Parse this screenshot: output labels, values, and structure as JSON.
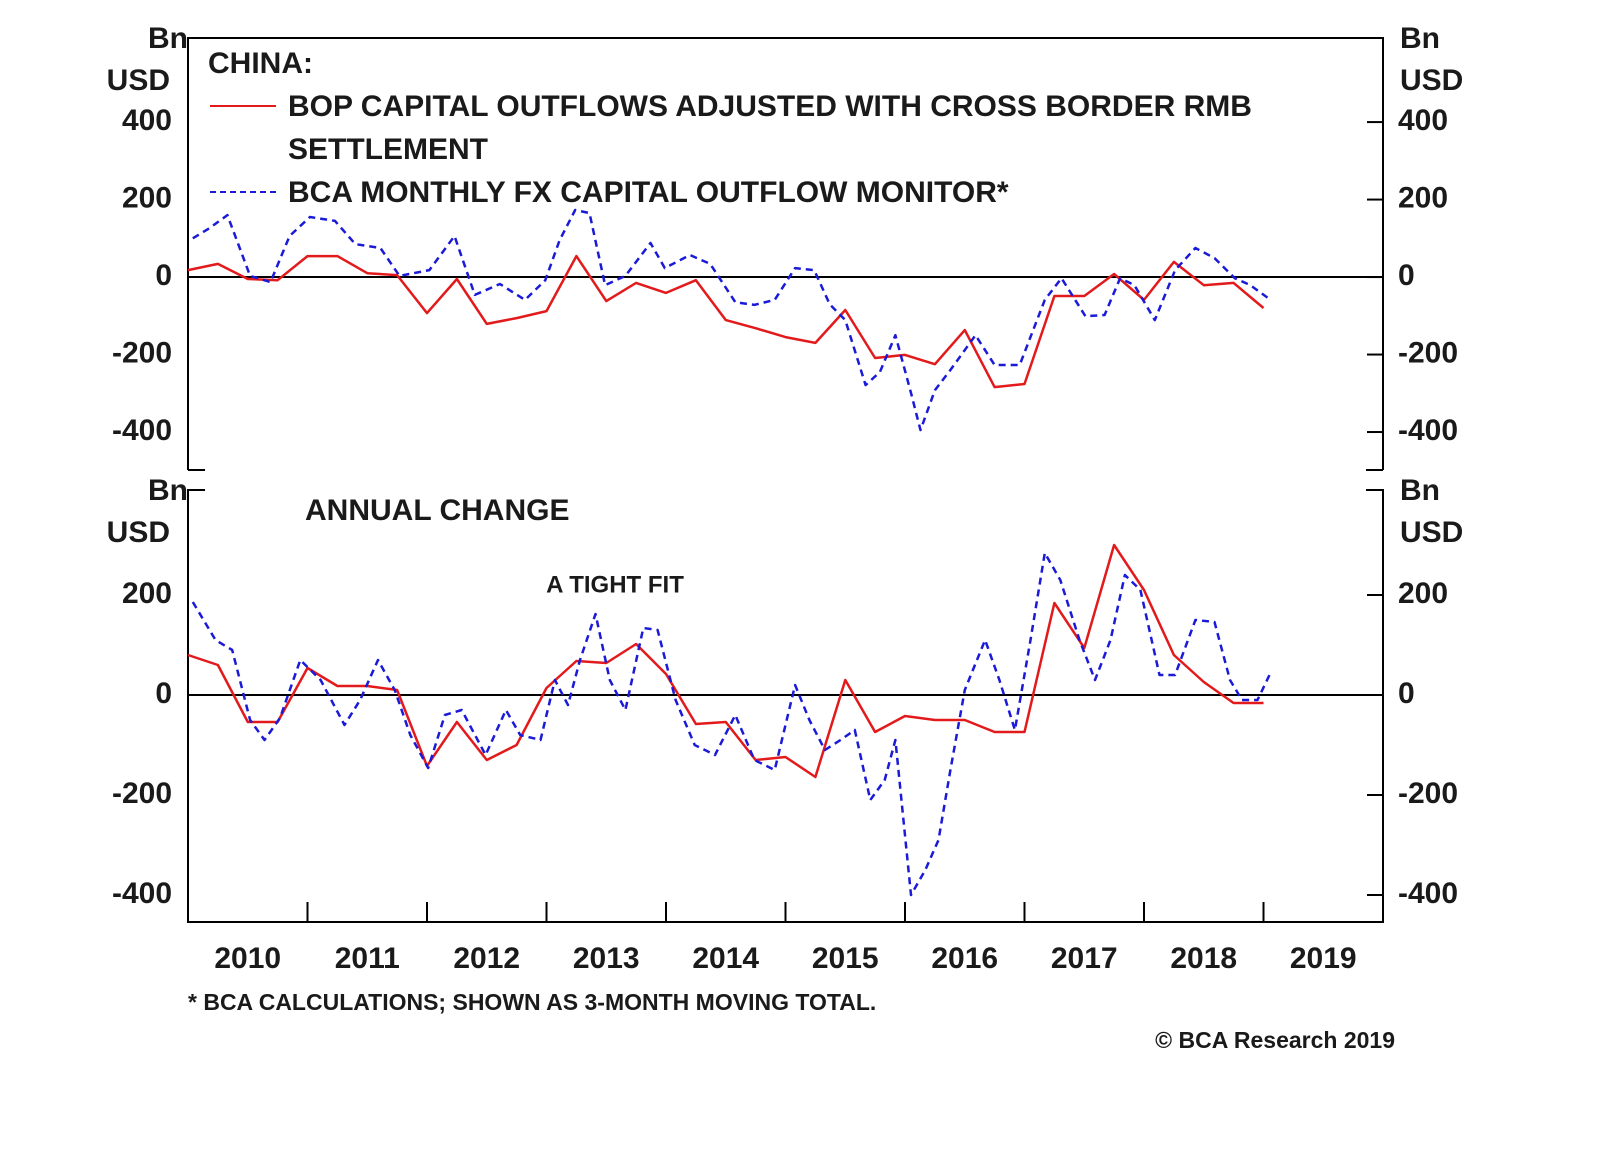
{
  "chart_data": [
    {
      "type": "line",
      "title": "CHINA:",
      "ylabel": [
        "Bn",
        "USD"
      ],
      "legend": "top-left",
      "zero_line": true,
      "xlim": [
        2010,
        2020
      ],
      "ylim": [
        -498,
        617
      ],
      "yticks": [
        400,
        200,
        0,
        -200,
        -400
      ],
      "series": [
        {
          "name": "BOP CAPITAL OUTFLOWS ADJUSTED WITH CROSS BORDER RMB SETTLEMENT",
          "color": "#e31a1c",
          "line_style": "solid",
          "x": [
            2010.0,
            2010.25,
            2010.5,
            2010.75,
            2011.0,
            2011.25,
            2011.5,
            2011.75,
            2012.0,
            2012.25,
            2012.5,
            2012.75,
            2013.0,
            2013.25,
            2013.5,
            2013.75,
            2014.0,
            2014.25,
            2014.5,
            2014.75,
            2015.0,
            2015.25,
            2015.5,
            2015.75,
            2016.0,
            2016.25,
            2016.5,
            2016.75,
            2017.0,
            2017.25,
            2017.5,
            2017.75,
            2018.0,
            2018.25,
            2018.5,
            2018.75,
            2019.0
          ],
          "values": [
            18,
            34,
            -5,
            -8,
            54,
            54,
            10,
            5,
            -93,
            -5,
            -121,
            -106,
            -88,
            54,
            -62,
            -15,
            -41,
            -8,
            -111,
            -132,
            -155,
            -170,
            -85,
            -209,
            -201,
            -225,
            -137,
            -284,
            -276,
            -49,
            -49,
            8,
            -59,
            39,
            -21,
            -15,
            -80
          ]
        },
        {
          "name": "BCA MONTHLY FX CAPITAL OUTFLOW MONITOR*",
          "color": "#1a1ad8",
          "line_style": "dashed",
          "x": [
            2010.04,
            2010.18,
            2010.33,
            2010.52,
            2010.69,
            2010.85,
            2011.02,
            2011.23,
            2011.4,
            2011.61,
            2011.77,
            2012.02,
            2012.23,
            2012.4,
            2012.61,
            2012.82,
            2012.99,
            2013.11,
            2013.24,
            2013.36,
            2013.49,
            2013.66,
            2013.87,
            2013.99,
            2014.2,
            2014.37,
            2014.58,
            2014.74,
            2014.91,
            2015.08,
            2015.24,
            2015.37,
            2015.5,
            2015.67,
            2015.79,
            2015.92,
            2016.05,
            2016.13,
            2016.25,
            2016.38,
            2016.59,
            2016.75,
            2016.96,
            2017.17,
            2017.31,
            2017.51,
            2017.67,
            2017.8,
            2017.92,
            2018.09,
            2018.26,
            2018.43,
            2018.59,
            2018.76,
            2018.89,
            2019.05
          ],
          "values": [
            100,
            126,
            160,
            3,
            -13,
            106,
            155,
            145,
            85,
            75,
            3,
            18,
            106,
            -46,
            -18,
            -59,
            -8,
            95,
            173,
            165,
            -21,
            3,
            88,
            23,
            57,
            34,
            -65,
            -72,
            -59,
            23,
            18,
            -70,
            -111,
            -279,
            -245,
            -150,
            -299,
            -395,
            -292,
            -240,
            -150,
            -227,
            -227,
            -59,
            -3,
            -101,
            -98,
            -3,
            -21,
            -111,
            18,
            75,
            49,
            -3,
            -21,
            -57
          ]
        }
      ]
    },
    {
      "type": "line",
      "title": "ANNUAL CHANGE",
      "annotation": "A TIGHT FIT",
      "ylabel": [
        "Bn",
        "USD"
      ],
      "zero_line": true,
      "xlim": [
        2010,
        2020
      ],
      "xticks": [
        2010,
        2011,
        2012,
        2013,
        2014,
        2015,
        2016,
        2017,
        2018,
        2019
      ],
      "ylim": [
        -454,
        410
      ],
      "yticks": [
        200,
        0,
        -200,
        -400
      ],
      "series": [
        {
          "color": "#e31a1c",
          "line_style": "solid",
          "x": [
            2010.0,
            2010.25,
            2010.5,
            2010.75,
            2011.0,
            2011.25,
            2011.5,
            2011.75,
            2012.0,
            2012.25,
            2012.5,
            2012.75,
            2013.0,
            2013.25,
            2013.5,
            2013.75,
            2014.0,
            2014.25,
            2014.5,
            2014.75,
            2015.0,
            2015.25,
            2015.5,
            2015.75,
            2016.0,
            2016.25,
            2016.5,
            2016.75,
            2017.0,
            2017.25,
            2017.5,
            2017.75,
            2018.0,
            2018.25,
            2018.5,
            2018.75,
            2019.0
          ],
          "values": [
            80,
            60,
            -54,
            -54,
            54,
            18,
            18,
            10,
            -142,
            -54,
            -130,
            -100,
            14,
            68,
            64,
            102,
            42,
            -58,
            -54,
            -130,
            -124,
            -164,
            30,
            -74,
            -42,
            -50,
            -50,
            -74,
            -74,
            184,
            94,
            300,
            210,
            80,
            26,
            -16,
            -16
          ]
        },
        {
          "color": "#1a1ad8",
          "line_style": "dashed",
          "x": [
            2010.04,
            2010.23,
            2010.37,
            2010.52,
            2010.64,
            2010.77,
            2010.94,
            2011.11,
            2011.31,
            2011.44,
            2011.59,
            2011.73,
            2011.86,
            2012.01,
            2012.15,
            2012.29,
            2012.49,
            2012.66,
            2012.78,
            2012.95,
            2013.07,
            2013.18,
            2013.28,
            2013.41,
            2013.53,
            2013.66,
            2013.81,
            2013.93,
            2014.08,
            2014.24,
            2014.41,
            2014.58,
            2014.74,
            2014.91,
            2015.08,
            2015.2,
            2015.33,
            2015.46,
            2015.58,
            2015.71,
            2015.83,
            2015.92,
            2016.05,
            2016.17,
            2016.28,
            2016.38,
            2016.5,
            2016.67,
            2016.79,
            2016.92,
            2017.05,
            2017.17,
            2017.3,
            2017.46,
            2017.59,
            2017.72,
            2017.84,
            2017.97,
            2018.13,
            2018.26,
            2018.43,
            2018.59,
            2018.72,
            2018.82,
            2018.95,
            2019.05
          ],
          "values": [
            186,
            110,
            90,
            -50,
            -90,
            -46,
            70,
            30,
            -60,
            -10,
            70,
            10,
            -80,
            -146,
            -40,
            -30,
            -120,
            -30,
            -80,
            -90,
            30,
            -20,
            70,
            162,
            30,
            -30,
            134,
            130,
            -10,
            -100,
            -120,
            -40,
            -130,
            -150,
            20,
            -50,
            -110,
            -90,
            -70,
            -210,
            -170,
            -90,
            -400,
            -350,
            -290,
            -150,
            10,
            110,
            30,
            -70,
            110,
            284,
            230,
            110,
            30,
            110,
            240,
            210,
            40,
            40,
            150,
            146,
            30,
            -10,
            -10,
            40
          ]
        }
      ]
    }
  ],
  "footnote": "* BCA CALCULATIONS; SHOWN AS 3-MONTH MOVING TOTAL.",
  "credit": "© BCA Research 2019"
}
